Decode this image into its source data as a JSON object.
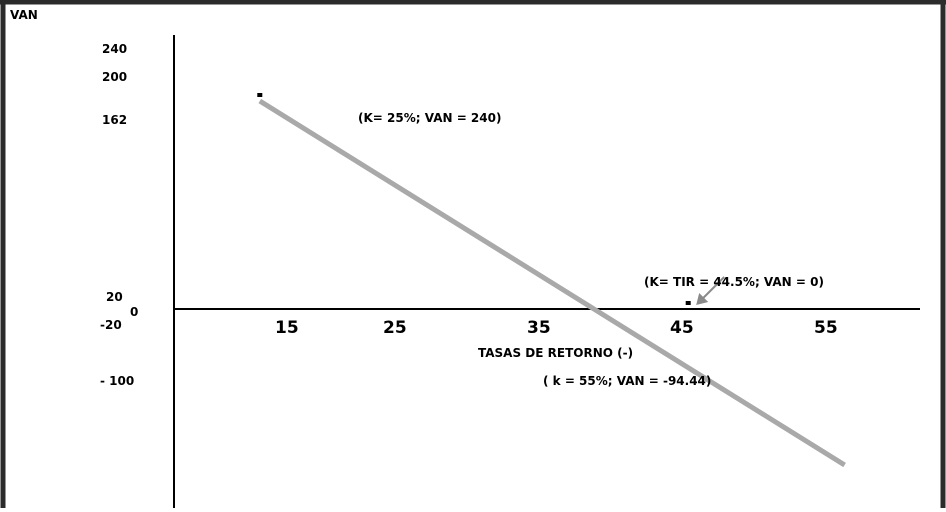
{
  "chart_data": {
    "type": "line",
    "ylabel": "VAN",
    "xlabel": "TASAS DE RETORNO (-)",
    "x_ticks": [
      "15",
      "25",
      "35",
      "45",
      "55"
    ],
    "y_ticks": [
      "240",
      "200",
      "162",
      "20",
      "0",
      "-20",
      "- 100"
    ],
    "series": [
      {
        "x": [
          13,
          56
        ],
        "y": [
          200,
          -150
        ]
      }
    ],
    "markers": [
      {
        "x": 13,
        "y": 200
      },
      {
        "x": 44.5,
        "y": 0
      }
    ],
    "annotations": [
      {
        "text": "(K= 25%; VAN = 240)"
      },
      {
        "text": "(K= TIR = 44.5%; VAN = 0)",
        "arrow_to": {
          "x": 44.5,
          "y": 0
        }
      },
      {
        "text": "( k = 55%; VAN = -94.44)"
      }
    ],
    "colors": {
      "line": "#a9a9a9",
      "axis": "#000000",
      "frame": "#2b2b2b"
    }
  }
}
